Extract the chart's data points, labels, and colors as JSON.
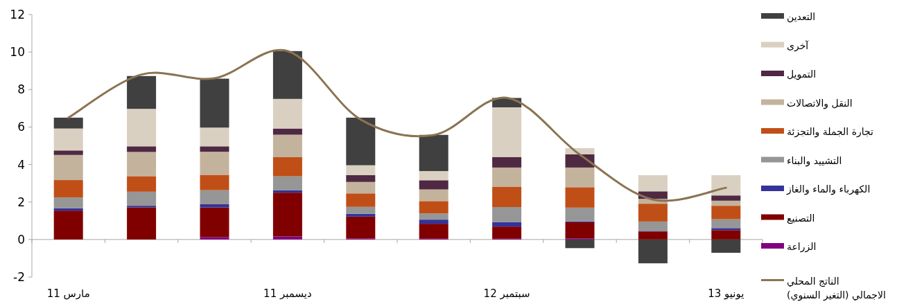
{
  "chart_data": {
    "type": "bar",
    "stacked": true,
    "legend": "right",
    "categories": [
      "مارس 11",
      null,
      null,
      "ديسمبر 11",
      null,
      null,
      "سبتمبر 12",
      null,
      null,
      "يونيو 13"
    ],
    "ylim": [
      -2,
      12
    ],
    "yticks": [
      -2,
      0,
      2,
      4,
      6,
      8,
      10,
      12
    ],
    "series": [
      {
        "name": "الزراعة",
        "color": "#800080",
        "values": [
          0,
          0,
          0.13,
          0.16,
          0.05,
          0.04,
          0.04,
          0.06,
          0,
          0
        ]
      },
      {
        "name": "التصنيع",
        "color": "#800000",
        "values": [
          1.54,
          1.71,
          1.58,
          2.34,
          1.17,
          0.8,
          0.65,
          0.86,
          0.43,
          0.5
        ]
      },
      {
        "name": "الكهرباء والماء والغاز",
        "color": "#333399",
        "values": [
          0.13,
          0.09,
          0.17,
          0.12,
          0.15,
          0.22,
          0.24,
          0.05,
          0.03,
          0.11
        ]
      },
      {
        "name": "التشييد والبناء",
        "color": "#969696",
        "values": [
          0.57,
          0.75,
          0.75,
          0.75,
          0.37,
          0.33,
          0.8,
          0.73,
          0.5,
          0.47
        ]
      },
      {
        "name": "تجارة الجملة والتجزئة",
        "color": "#c04f17",
        "values": [
          0.93,
          0.83,
          0.82,
          1.02,
          0.72,
          0.66,
          1.09,
          1.09,
          0.95,
          0.72
        ]
      },
      {
        "name": "النقل والاتصالات",
        "color": "#c4b39c",
        "values": [
          1.34,
          1.29,
          1.23,
          1.2,
          0.61,
          0.62,
          1.02,
          1.05,
          0.26,
          0.27
        ]
      },
      {
        "name": "التمويل",
        "color": "#4f2842",
        "values": [
          0.24,
          0.3,
          0.29,
          0.33,
          0.36,
          0.49,
          0.56,
          0.71,
          0.4,
          0.28
        ]
      },
      {
        "name": "آخرى",
        "color": "#d9d0c1",
        "values": [
          1.17,
          2.0,
          1.0,
          1.58,
          0.53,
          0.49,
          2.65,
          0.32,
          0.86,
          1.08
        ]
      },
      {
        "name": "التعدين",
        "color": "#404040",
        "values": [
          0.58,
          1.75,
          2.61,
          2.55,
          2.54,
          1.93,
          0.5,
          -0.46,
          -1.27,
          -0.71
        ]
      },
      {
        "name": "الناتج المحلي\nالاجمالي (التغير السنوي)",
        "color": "#8b7352",
        "type": "line",
        "values": [
          6.5,
          8.8,
          8.6,
          10.05,
          6.4,
          5.57,
          7.56,
          4.53,
          2.13,
          2.76
        ]
      }
    ]
  }
}
